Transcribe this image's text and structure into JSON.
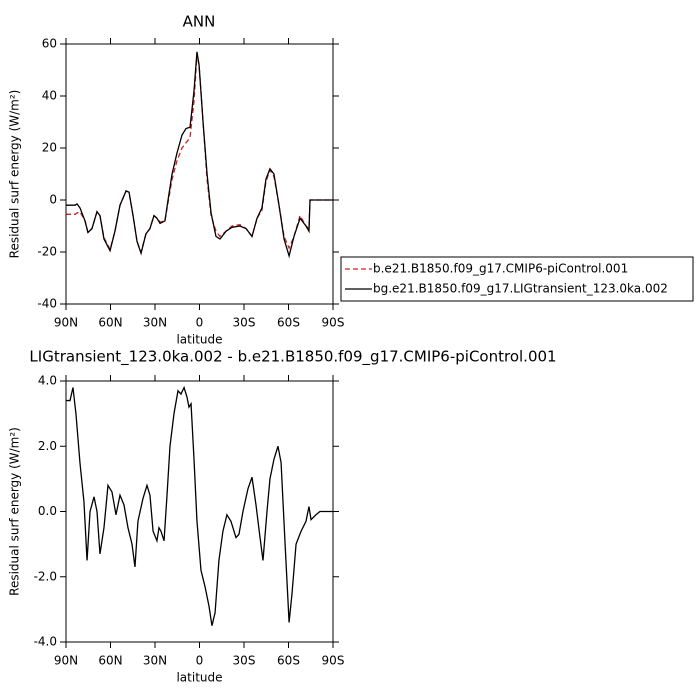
{
  "chart_data": [
    {
      "type": "line",
      "title": "ANN",
      "x_label": "latitude",
      "y_label": "Residual surf energy (W/m²)",
      "x": [
        90,
        83.9,
        82.6,
        80.6,
        77.2,
        75.2,
        72.5,
        69.1,
        67.1,
        64.4,
        60.3,
        57,
        53.6,
        49.5,
        47.5,
        44.8,
        42.1,
        39.4,
        36.1,
        33.4,
        30.7,
        28.7,
        26.6,
        23.3,
        21.2,
        18.5,
        15.2,
        11.8,
        9.1,
        6.4,
        3.7,
        1.7,
        0.3,
        -2.4,
        -5.1,
        -7.8,
        -11.1,
        -13.8,
        -17.9,
        -21.9,
        -27.3,
        -31.4,
        -35.4,
        -38.8,
        -42.1,
        -44.8,
        -47.5,
        -50.2,
        -53.6,
        -57,
        -60.4,
        -63.7,
        -67.8,
        -71.8,
        -73.8,
        -74.5,
        -81.2,
        -90
      ],
      "series": [
        {
          "name": "b.e21.B1850.f09_g17.CMIP6-piControl.001",
          "color": "#d42020",
          "line_style": "dashed",
          "values": [
            -5.5,
            -5.5,
            -5,
            -4.5,
            -8,
            -12.5,
            -11,
            -4.5,
            -6,
            -14.5,
            -19,
            -12,
            -2,
            3.5,
            3,
            -6,
            -16,
            -20,
            -13,
            -11,
            -6,
            -7,
            -8.5,
            -8,
            -1,
            8,
            15,
            20,
            22,
            24,
            38,
            56,
            52,
            30,
            8,
            -6,
            -12,
            -14,
            -12,
            -10,
            -9.5,
            -11,
            -14,
            -7,
            -4,
            7,
            11.5,
            9,
            -2,
            -14,
            -18.5,
            -14,
            -6,
            -10,
            -11,
            0,
            0,
            0
          ]
        },
        {
          "name": "bg.e21.B1850.f09_g17.LIGtransient_123.0ka.002",
          "color": "#000000",
          "line_style": "solid",
          "values": [
            -2,
            -2,
            -1.5,
            -3,
            -8,
            -12.5,
            -11,
            -4.5,
            -6,
            -15,
            -19.5,
            -12,
            -2,
            3.5,
            3,
            -6,
            -16,
            -20.5,
            -13,
            -11,
            -6,
            -7,
            -9,
            -8,
            0,
            10,
            18,
            25,
            27.5,
            28,
            42,
            57,
            52,
            30,
            10,
            -5,
            -14,
            -15,
            -12,
            -10.5,
            -10,
            -11,
            -14,
            -7,
            -3,
            8,
            12,
            10,
            -2,
            -15,
            -21.5,
            -14,
            -7,
            -10,
            -12,
            0,
            0,
            0
          ]
        }
      ],
      "xlim": [
        90,
        -90
      ],
      "xticks": [
        {
          "value": 90,
          "label": "90N"
        },
        {
          "value": 60,
          "label": "60N"
        },
        {
          "value": 30,
          "label": "30N"
        },
        0,
        {
          "value": -30,
          "label": "30S"
        },
        {
          "value": -60,
          "label": "60S"
        },
        {
          "value": -90,
          "label": "90S"
        }
      ],
      "ylim": [
        -40,
        60
      ],
      "yticks": [
        -40,
        -20,
        0,
        20,
        40,
        60
      ],
      "legend": "right"
    },
    {
      "type": "line",
      "title": "LIGtransient_123.0ka.002 - b.e21.B1850.f09_g17.CMIP6-piControl.001",
      "x_label": "latitude",
      "y_label": "Residual surf energy (W/m²)",
      "x": [
        90,
        87.3,
        85.3,
        83.3,
        80.6,
        77.9,
        75.8,
        73.8,
        71.1,
        69.1,
        67.1,
        64.4,
        61.7,
        59,
        56.3,
        53.6,
        50.9,
        48.2,
        45.5,
        43.5,
        41.5,
        38.1,
        35.4,
        33.4,
        31.3,
        28.7,
        27.3,
        26,
        23.9,
        21.9,
        19.9,
        17.2,
        14.5,
        12.5,
        10.4,
        8.4,
        7.1,
        5.7,
        3.7,
        1.7,
        -1,
        -3.7,
        -6.4,
        -8.4,
        -10.5,
        -13.1,
        -15.8,
        -18.5,
        -21.2,
        -24.6,
        -26.6,
        -29.3,
        -32.7,
        -35.4,
        -38.1,
        -40.8,
        -42.8,
        -45.5,
        -47.5,
        -50.2,
        -52.9,
        -55,
        -57.7,
        -60.4,
        -62.4,
        -65.1,
        -68.5,
        -71.8,
        -73.8,
        -75.2,
        -78.5,
        -81.2,
        -90
      ],
      "values": [
        3.4,
        3.4,
        3.8,
        3.0,
        1.5,
        0.3,
        -1.5,
        0.0,
        0.45,
        0.0,
        -1.3,
        -0.5,
        0.8,
        0.6,
        -0.1,
        0.5,
        0.2,
        -0.5,
        -1.0,
        -1.7,
        -0.3,
        0.4,
        0.8,
        0.5,
        -0.6,
        -0.9,
        -0.5,
        -0.6,
        -0.9,
        0.5,
        2.0,
        3.0,
        3.7,
        3.6,
        3.8,
        3.5,
        3.2,
        3.3,
        1.6,
        -0.3,
        -1.8,
        -2.3,
        -2.9,
        -3.5,
        -3.1,
        -1.5,
        -0.6,
        -0.1,
        -0.3,
        -0.8,
        -0.7,
        0.0,
        0.7,
        1.05,
        0.2,
        -0.8,
        -1.5,
        0.0,
        1.0,
        1.6,
        2.0,
        1.5,
        -1.0,
        -3.4,
        -2.5,
        -1.0,
        -0.6,
        -0.3,
        0.15,
        -0.25,
        -0.1,
        0,
        0
      ],
      "color": "#000000",
      "xlim": [
        90,
        -90
      ],
      "xticks": [
        {
          "value": 90,
          "label": "90N"
        },
        {
          "value": 60,
          "label": "60N"
        },
        {
          "value": 30,
          "label": "30N"
        },
        0,
        {
          "value": -30,
          "label": "30S"
        },
        {
          "value": -60,
          "label": "60S"
        },
        {
          "value": -90,
          "label": "90S"
        }
      ],
      "ylim": [
        -4,
        4
      ],
      "yticks": [
        {
          "value": -4,
          "label": "-4.0"
        },
        {
          "value": -2,
          "label": "-2.0"
        },
        {
          "value": 0,
          "label": "0.0"
        },
        {
          "value": 2,
          "label": "2.0"
        },
        {
          "value": 4,
          "label": "4.0"
        }
      ]
    }
  ]
}
